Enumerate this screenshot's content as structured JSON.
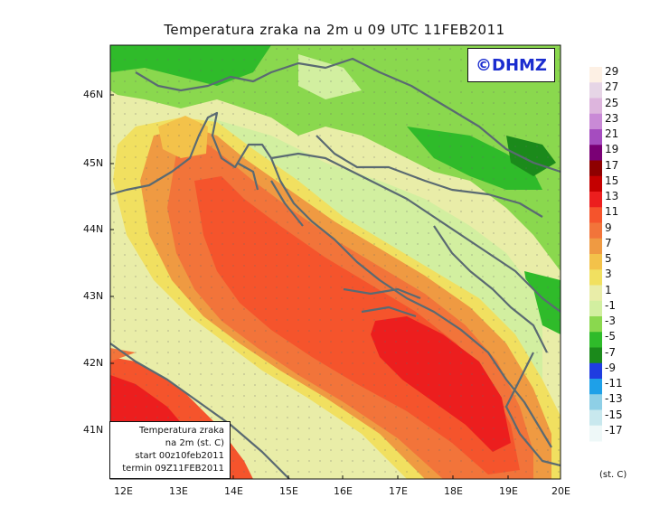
{
  "title": "Temperatura zraka na 2m u 09 UTC 11FEB2011",
  "badge": "©DHMZ",
  "info_box": {
    "line1": "Temperatura zraka",
    "line2": "na 2m (st. C)",
    "line3": "start 00z10feb2011",
    "line4": "termin 09Z11FEB2011"
  },
  "lat_labels": [
    "46N",
    "45N",
    "44N",
    "43N",
    "42N",
    "41N"
  ],
  "lon_labels": [
    "12E",
    "13E",
    "14E",
    "15E",
    "16E",
    "17E",
    "18E",
    "19E",
    "20E"
  ],
  "colorbar": {
    "labels": [
      "29",
      "27",
      "25",
      "23",
      "21",
      "19",
      "17",
      "15",
      "13",
      "11",
      "9",
      "7",
      "5",
      "3",
      "1",
      "-1",
      "-3",
      "-5",
      "-7",
      "-9",
      "-11",
      "-13",
      "-15",
      "-17"
    ],
    "colors": [
      "#fdf0e4",
      "#e6d5e6",
      "#ddb5dd",
      "#c98ad6",
      "#a54cbf",
      "#7a0075",
      "#8e0000",
      "#c40000",
      "#ec1e1e",
      "#f5542c",
      "#f2743a",
      "#ef9a42",
      "#f3c24a",
      "#f1e060",
      "#e9eda8",
      "#d2efa0",
      "#8ad84e",
      "#2fbb2a",
      "#1b8a1b",
      "#1f3de0",
      "#1ea0e8",
      "#8ecfe6",
      "#c8e8ee",
      "#eef8f8"
    ],
    "unit": "(st. C)"
  }
}
